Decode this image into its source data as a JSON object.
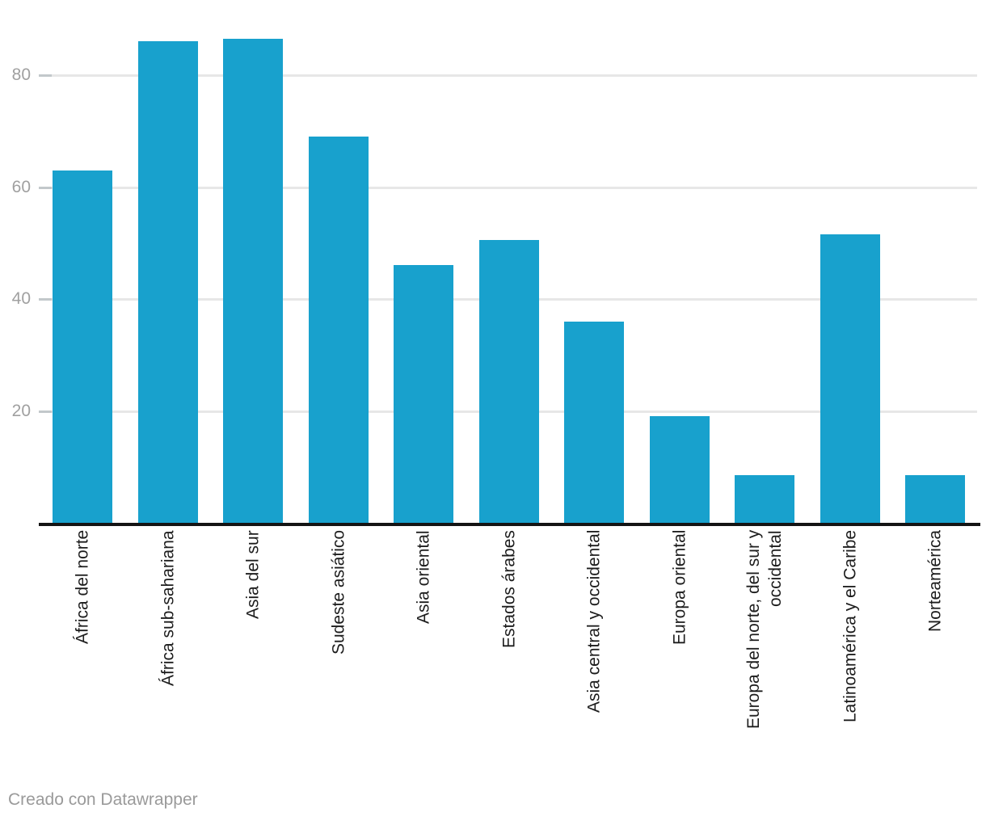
{
  "chart_data": {
    "type": "bar",
    "categories": [
      "África del norte",
      "África sub-sahariana",
      "Asia del sur",
      "Sudeste asiático",
      "Asia oriental",
      "Estados árabes",
      "Asia central y occidental",
      "Europa oriental",
      "Europa del norte, del sur y occidental",
      "Latinoamérica y el Caribe",
      "Norteamérica"
    ],
    "values": [
      63,
      86,
      86.5,
      69,
      46,
      50.5,
      36,
      19,
      8.5,
      51.5,
      8.5
    ],
    "title": "",
    "xlabel": "",
    "ylabel": "",
    "ylim": [
      0,
      90
    ],
    "yticks": [
      20,
      40,
      60,
      80
    ],
    "grid": "horizontal",
    "legend_position": "none",
    "bar_color": "#18a1cd"
  },
  "colors": {
    "bar": "#18a1cd",
    "gridline": "#e7e7e7",
    "tick": "#c2c8cb",
    "axis_line": "#141414",
    "y_label_text": "#a0a0a0",
    "x_label_text": "#1d1d1d",
    "footer_text": "#9a9a9a",
    "background": "#ffffff"
  },
  "footer": {
    "attribution": "Creado con Datawrapper"
  }
}
